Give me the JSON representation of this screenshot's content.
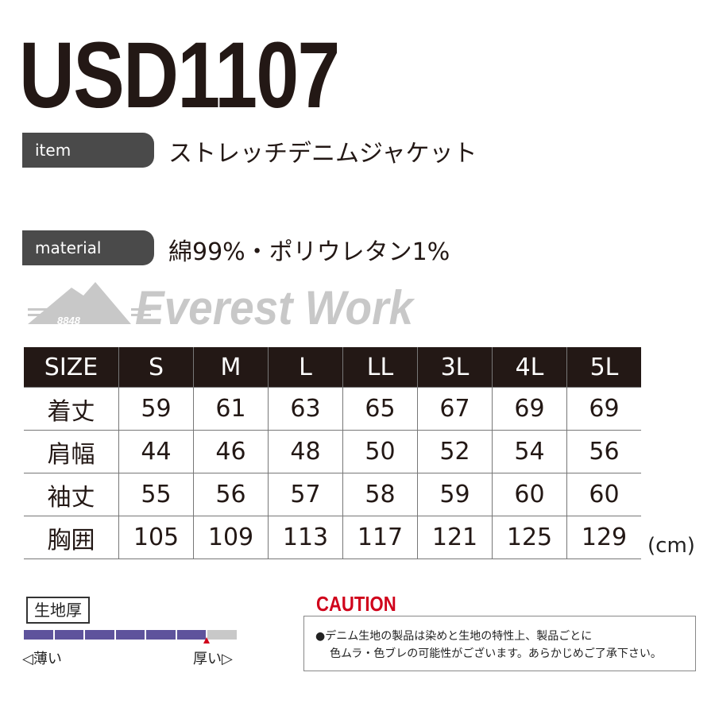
{
  "product_code": "USD1107",
  "item": {
    "label": "item",
    "value": "ストレッチデニムジャケット"
  },
  "material": {
    "label": "material",
    "value": "綿99%・ポリウレタン1%"
  },
  "brand": {
    "name": "Everest Work",
    "mark": "8848"
  },
  "size_table": {
    "headers": [
      "SIZE",
      "S",
      "M",
      "L",
      "LL",
      "3L",
      "4L",
      "5L"
    ],
    "rows": [
      {
        "label": "着丈",
        "values": [
          "59",
          "61",
          "63",
          "65",
          "67",
          "69",
          "69"
        ]
      },
      {
        "label": "肩幅",
        "values": [
          "44",
          "46",
          "48",
          "50",
          "52",
          "54",
          "56"
        ]
      },
      {
        "label": "袖丈",
        "values": [
          "55",
          "56",
          "57",
          "58",
          "59",
          "60",
          "60"
        ]
      },
      {
        "label": "胸囲",
        "values": [
          "105",
          "109",
          "113",
          "117",
          "121",
          "125",
          "129"
        ]
      }
    ],
    "unit": "(cm)"
  },
  "fabric_thickness": {
    "label": "生地厚",
    "thin": "◁薄い",
    "thick": "厚い▷",
    "level": 6,
    "max": 7,
    "fill_color": "#5e539c",
    "empty_color": "#c8c8c8"
  },
  "caution": {
    "title": "CAUTION",
    "lines": [
      "●デニム生地の製品は染めと生地の特性上、製品ごとに",
      "色ムラ・色ブレの可能性がございます。あらかじめご了承下さい。"
    ]
  }
}
